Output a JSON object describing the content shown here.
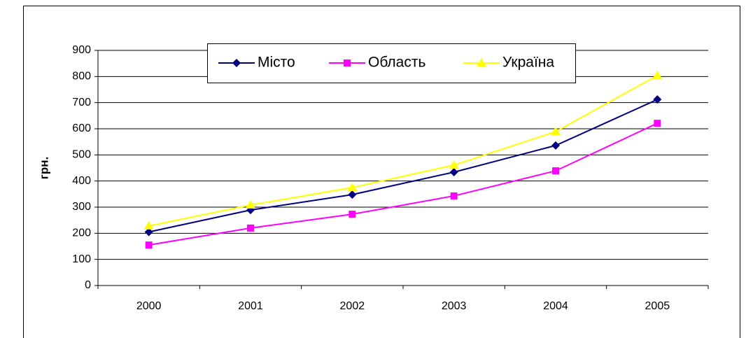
{
  "chart_data": {
    "type": "line",
    "ylabel": "грн.",
    "categories": [
      "2000",
      "2001",
      "2002",
      "2003",
      "2004",
      "2005"
    ],
    "series": [
      {
        "name": "Місто",
        "color": "#000080",
        "marker": "diamond",
        "values": [
          205,
          289,
          348,
          434,
          536,
          712
        ]
      },
      {
        "name": "Область",
        "color": "#ff00ff",
        "marker": "square",
        "values": [
          155,
          220,
          273,
          343,
          439,
          621
        ]
      },
      {
        "name": "Україна",
        "color": "#ffff00",
        "marker": "triangle",
        "values": [
          228,
          308,
          375,
          461,
          589,
          804
        ]
      }
    ],
    "ylim": [
      0,
      900
    ],
    "yticks": [
      0,
      100,
      200,
      300,
      400,
      500,
      600,
      700,
      800,
      900
    ],
    "grid": true,
    "legend": "top"
  }
}
